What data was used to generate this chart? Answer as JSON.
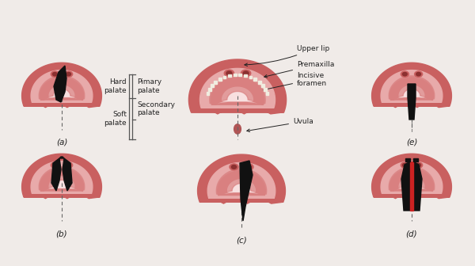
{
  "background_color": "#f0ebe8",
  "labels": {
    "a": "(a)",
    "b": "(b)",
    "c": "(c)",
    "d": "(d)",
    "e": "(e)"
  },
  "annotations": {
    "hard_palate": "Hard\npalate",
    "soft_palate": "Soft\npalate",
    "primary_palate": "Pimary\npalate",
    "secondary_palate": "Secondary\npalate",
    "upper_lip": "Upper lip",
    "premaxilla": "Premaxilla",
    "incisive_foramen": "Incisive\nforamen",
    "uvula": "Uvula"
  },
  "colors": {
    "col1": "#c96060",
    "col2": "#d98080",
    "col3": "#e8aaaa",
    "col4": "#f2cccc",
    "col5": "#f8e0e0",
    "cleft": "#111111",
    "dashed": "#666666",
    "text": "#222222",
    "bracket": "#555555",
    "teeth": "#f0ede0",
    "uvula": "#b05555",
    "nostril": "#b05050",
    "red_strip": "#cc2222"
  },
  "figure_size": [
    6.0,
    3.36
  ],
  "dpi": 100
}
